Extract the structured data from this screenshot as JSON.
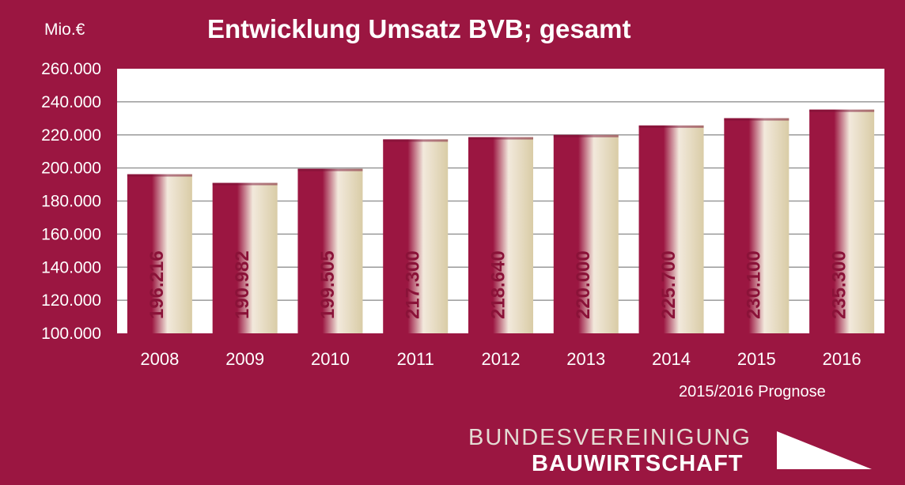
{
  "chart_data": {
    "type": "bar",
    "title": "Entwicklung Umsatz BVB; gesamt",
    "ylabel": "Mio.€",
    "categories": [
      "2008",
      "2009",
      "2010",
      "2011",
      "2012",
      "2013",
      "2014",
      "2015",
      "2016"
    ],
    "values": [
      196216,
      190982,
      199505,
      217300,
      218640,
      220000,
      225700,
      230100,
      235300
    ],
    "value_labels": [
      "196.216",
      "190.982",
      "199.505",
      "217.300",
      "218.640",
      "220.000",
      "225.700",
      "230.100",
      "235.300"
    ],
    "ylim": [
      100000,
      260000
    ],
    "yticks": [
      100000,
      120000,
      140000,
      160000,
      180000,
      200000,
      220000,
      240000,
      260000
    ],
    "ytick_labels": [
      "100.000",
      "120.000",
      "140.000",
      "160.000",
      "180.000",
      "200.000",
      "220.000",
      "240.000",
      "260.000"
    ],
    "grid": true,
    "legend": "none",
    "note": "2015/2016 Prognose"
  },
  "brand": {
    "line1": "BUNDESVEREINIGUNG",
    "line2": "BAUWIRTSCHAFT"
  },
  "colors": {
    "background": "#9b1641",
    "bar_dark": "#9b1641",
    "bar_light": "#e6dcc2",
    "plot_bg": "#ffffff",
    "grid": "#999999"
  }
}
